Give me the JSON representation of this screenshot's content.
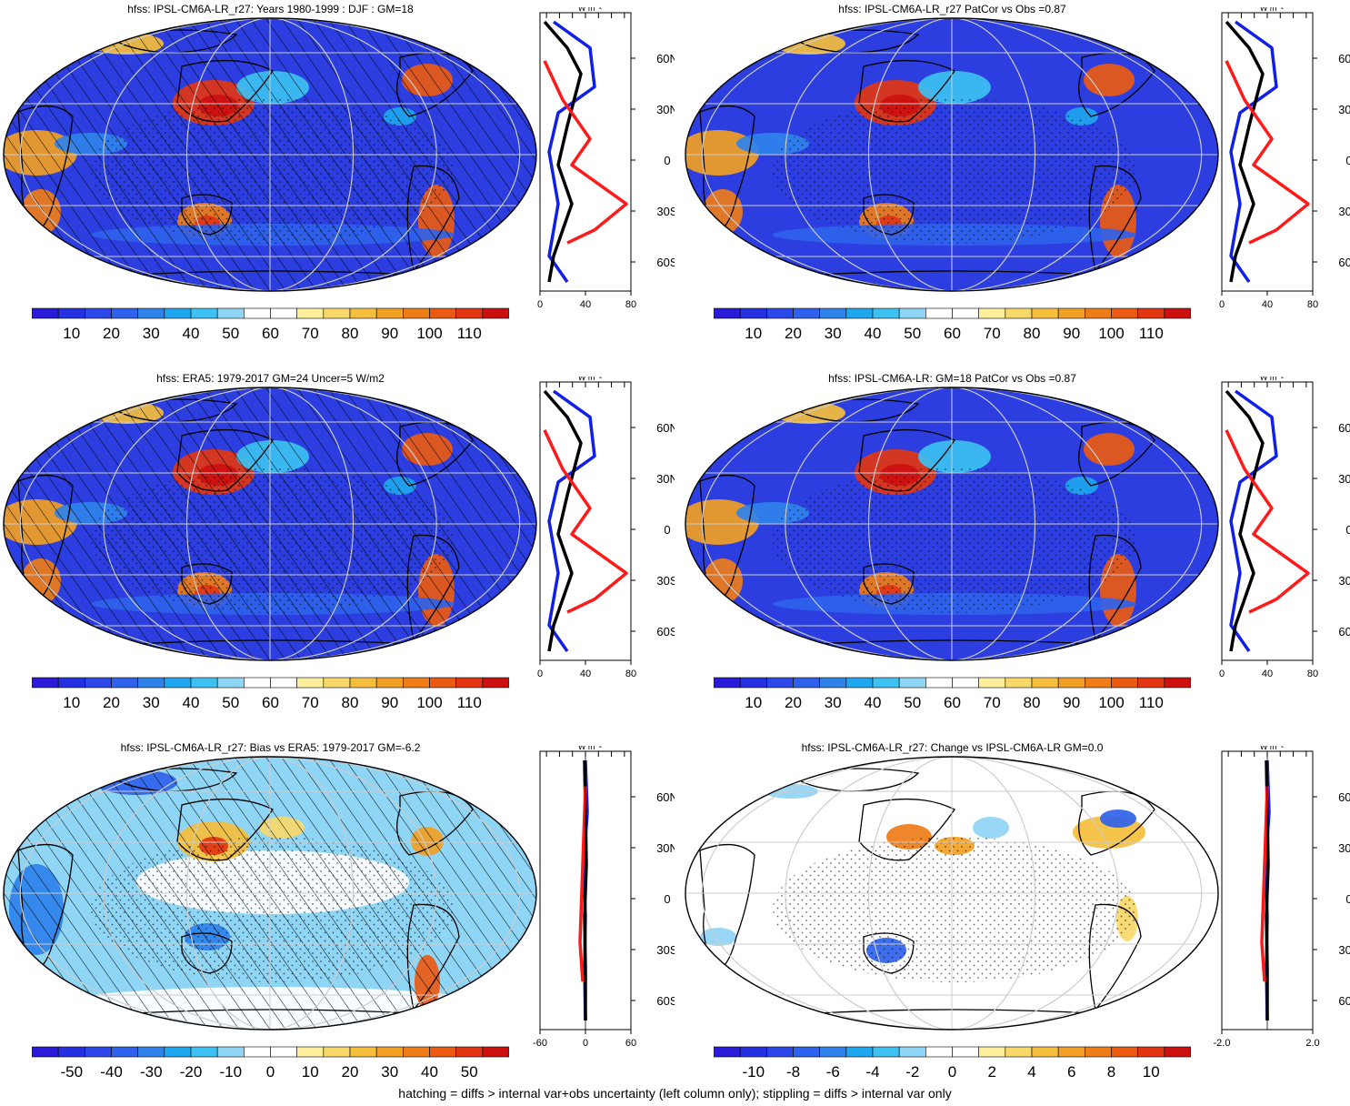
{
  "footer": "hatching = diffs > internal var+obs uncertainty (left column only); stippling = diffs > internal var only",
  "units_label": "W m⁻²",
  "lat_labels": [
    "60N",
    "30N",
    "0",
    "30S",
    "60S"
  ],
  "colors": {
    "abs_scale": [
      "#2a1bd8",
      "#2530e0",
      "#2c48e8",
      "#2f62ec",
      "#2f82ea",
      "#1ea6ee",
      "#3cc1f2",
      "#8fd5f5",
      "#ffffff",
      "#ffffff",
      "#fdef9c",
      "#f9d86a",
      "#f5be3c",
      "#f2a023",
      "#ee7d18",
      "#ea5a12",
      "#e23512",
      "#cc1010"
    ],
    "bias_scale": [
      "#2a1bd8",
      "#2530e0",
      "#2c48e8",
      "#2f62ec",
      "#2f82ea",
      "#1ea6ee",
      "#3cc1f2",
      "#8fd5f5",
      "#ffffff",
      "#ffffff",
      "#fdef9c",
      "#f9d86a",
      "#f5be3c",
      "#f2a023",
      "#ee7d18",
      "#ea5a12",
      "#e23512",
      "#cc1010"
    ],
    "line_black": "#000000",
    "line_blue": "#1020e8",
    "line_red": "#ff1a1a"
  },
  "panels": [
    {
      "id": "p1",
      "title": "hfss: IPSL-CM6A-LR_r27: Years 1980-1999 : DJF : GM=18",
      "map_kind": "abs",
      "hatched": true,
      "colorbar_ticks": [
        "10",
        "20",
        "30",
        "40",
        "50",
        "60",
        "70",
        "80",
        "90",
        "100",
        "110"
      ],
      "zonal_ticks": [
        "0",
        "40",
        "80"
      ],
      "zonal_range": [
        0,
        80
      ]
    },
    {
      "id": "p2",
      "title": "hfss: IPSL-CM6A-LR_r27 PatCor vs Obs =0.87",
      "map_kind": "abs",
      "hatched": false,
      "colorbar_ticks": [
        "10",
        "20",
        "30",
        "40",
        "50",
        "60",
        "70",
        "80",
        "90",
        "100",
        "110"
      ],
      "zonal_ticks": [
        "0",
        "40",
        "80"
      ],
      "zonal_range": [
        0,
        80
      ]
    },
    {
      "id": "p3",
      "title": "hfss: ERA5: 1979-2017 GM=24 Uncer=5 W/m2",
      "map_kind": "abs",
      "hatched": true,
      "colorbar_ticks": [
        "10",
        "20",
        "30",
        "40",
        "50",
        "60",
        "70",
        "80",
        "90",
        "100",
        "110"
      ],
      "zonal_ticks": [
        "0",
        "40",
        "80"
      ],
      "zonal_range": [
        0,
        80
      ]
    },
    {
      "id": "p4",
      "title": "hfss: IPSL-CM6A-LR: GM=18 PatCor vs Obs =0.87",
      "map_kind": "abs",
      "hatched": false,
      "colorbar_ticks": [
        "10",
        "20",
        "30",
        "40",
        "50",
        "60",
        "70",
        "80",
        "90",
        "100",
        "110"
      ],
      "zonal_ticks": [
        "0",
        "40",
        "80"
      ],
      "zonal_range": [
        0,
        80
      ]
    },
    {
      "id": "p5",
      "title": "hfss: IPSL-CM6A-LR_r27: Bias vs ERA5: 1979-2017 GM=-6.2",
      "map_kind": "bias",
      "hatched": true,
      "colorbar_ticks": [
        "-50",
        "-40",
        "-30",
        "-20",
        "-10",
        "0",
        "10",
        "20",
        "30",
        "40",
        "50"
      ],
      "zonal_ticks": [
        "-60",
        "0",
        "60"
      ],
      "zonal_range": [
        -80,
        80
      ]
    },
    {
      "id": "p6",
      "title": "hfss: IPSL-CM6A-LR_r27: Change vs IPSL-CM6A-LR GM=0.0",
      "map_kind": "change",
      "hatched": false,
      "colorbar_ticks": [
        "-10",
        "-8",
        "-6",
        "-4",
        "-2",
        "0",
        "2",
        "4",
        "6",
        "8",
        "10"
      ],
      "zonal_ticks": [
        "-2.0",
        "2.0"
      ],
      "zonal_range": [
        -3,
        3
      ]
    }
  ]
}
